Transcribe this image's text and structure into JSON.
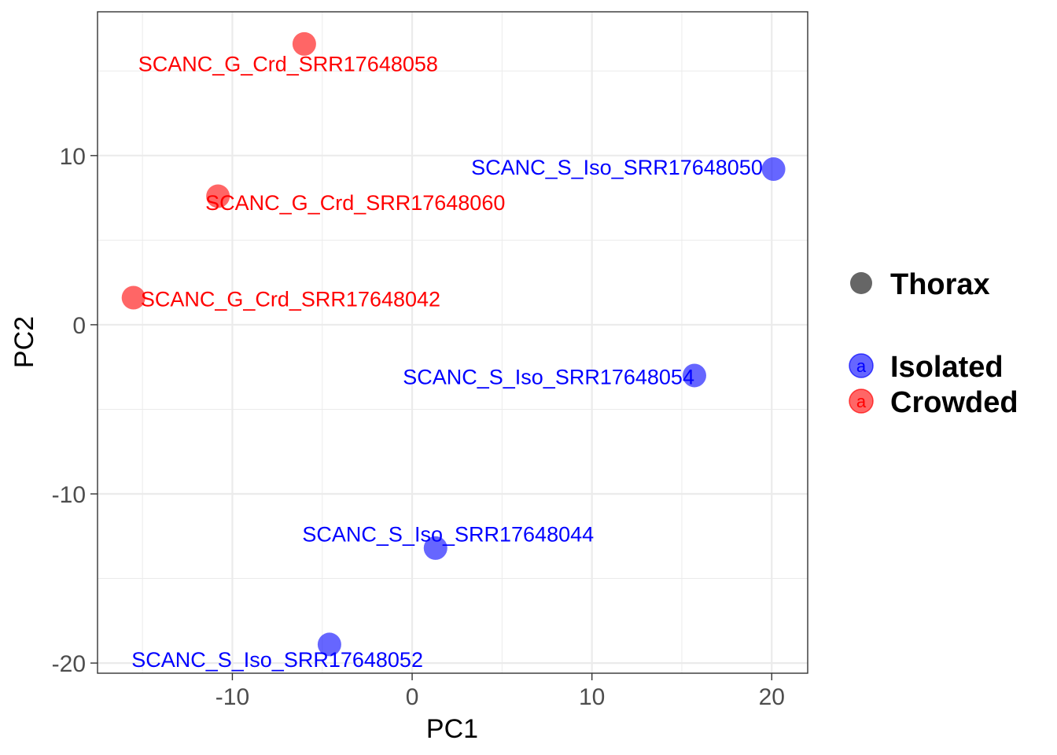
{
  "chart_data": {
    "type": "scatter",
    "title": "",
    "xlabel": "PC1",
    "ylabel": "PC2",
    "xlim": [
      -17.5,
      22
    ],
    "ylim": [
      -20.6,
      18.5
    ],
    "x_ticks": [
      -10,
      0,
      10,
      20
    ],
    "y_ticks": [
      -20,
      -10,
      0,
      10
    ],
    "x_tick_labels": [
      "-10",
      "0",
      "10",
      "20"
    ],
    "y_tick_labels": [
      "-20",
      "-10",
      "0",
      "10"
    ],
    "grid": true,
    "legend_position": "right",
    "legend": {
      "shape_title": "Thorax",
      "shape_color": "#666666",
      "key_glyph": "a",
      "groups": [
        {
          "name": "Isolated",
          "color": "#0000ff"
        },
        {
          "name": "Crowded",
          "color": "#ff0000"
        }
      ]
    },
    "series": [
      {
        "name": "Crowded",
        "color": "#ff0000",
        "points": [
          {
            "label": "SCANC_G_Crd_SRR17648058",
            "x": -6.0,
            "y": 16.6,
            "label_x": -6.9,
            "label_y": 15.4,
            "anchor": "middle"
          },
          {
            "label": "SCANC_G_Crd_SRR17648060",
            "x": -10.8,
            "y": 7.6,
            "label_x": -11.5,
            "label_y": 7.2,
            "anchor": "start"
          },
          {
            "label": "SCANC_G_Crd_SRR17648042",
            "x": -15.5,
            "y": 1.6,
            "label_x": -15.1,
            "label_y": 1.5,
            "anchor": "start"
          }
        ]
      },
      {
        "name": "Isolated",
        "color": "#0000ff",
        "points": [
          {
            "label": "SCANC_S_Iso_SRR17648050",
            "x": 20.1,
            "y": 9.2,
            "label_x": 19.5,
            "label_y": 9.3,
            "anchor": "end"
          },
          {
            "label": "SCANC_S_Iso_SRR17648054",
            "x": 15.7,
            "y": -3.0,
            "label_x": 15.7,
            "label_y": -3.1,
            "anchor": "end"
          },
          {
            "label": "SCANC_S_Iso_SRR17648044",
            "x": 1.3,
            "y": -13.2,
            "label_x": 2.0,
            "label_y": -12.4,
            "anchor": "middle"
          },
          {
            "label": "SCANC_S_Iso_SRR17648052",
            "x": -4.6,
            "y": -18.9,
            "label_x": -7.5,
            "label_y": -19.8,
            "anchor": "middle"
          }
        ]
      }
    ]
  }
}
